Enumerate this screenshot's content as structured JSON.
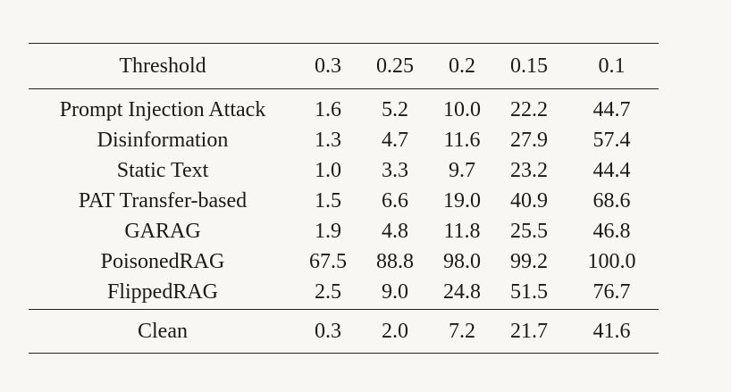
{
  "table": {
    "header": {
      "label": "Threshold",
      "thresholds": [
        "0.3",
        "0.25",
        "0.2",
        "0.15",
        "0.1"
      ]
    },
    "rows": [
      {
        "name": "Prompt Injection Attack",
        "values": [
          "1.6",
          "5.2",
          "10.0",
          "22.2",
          "44.7"
        ]
      },
      {
        "name": "Disinformation",
        "values": [
          "1.3",
          "4.7",
          "11.6",
          "27.9",
          "57.4"
        ]
      },
      {
        "name": "Static Text",
        "values": [
          "1.0",
          "3.3",
          "9.7",
          "23.2",
          "44.4"
        ]
      },
      {
        "name": "PAT Transfer-based",
        "values": [
          "1.5",
          "6.6",
          "19.0",
          "40.9",
          "68.6"
        ]
      },
      {
        "name": "GARAG",
        "values": [
          "1.9",
          "4.8",
          "11.8",
          "25.5",
          "46.8"
        ]
      },
      {
        "name": "PoisonedRAG",
        "values": [
          "67.5",
          "88.8",
          "98.0",
          "99.2",
          "100.0"
        ]
      },
      {
        "name": "FlippedRAG",
        "values": [
          "2.5",
          "9.0",
          "24.8",
          "51.5",
          "76.7"
        ]
      }
    ],
    "clean": {
      "name": "Clean",
      "values": [
        "0.3",
        "2.0",
        "7.2",
        "21.7",
        "41.6"
      ]
    }
  }
}
